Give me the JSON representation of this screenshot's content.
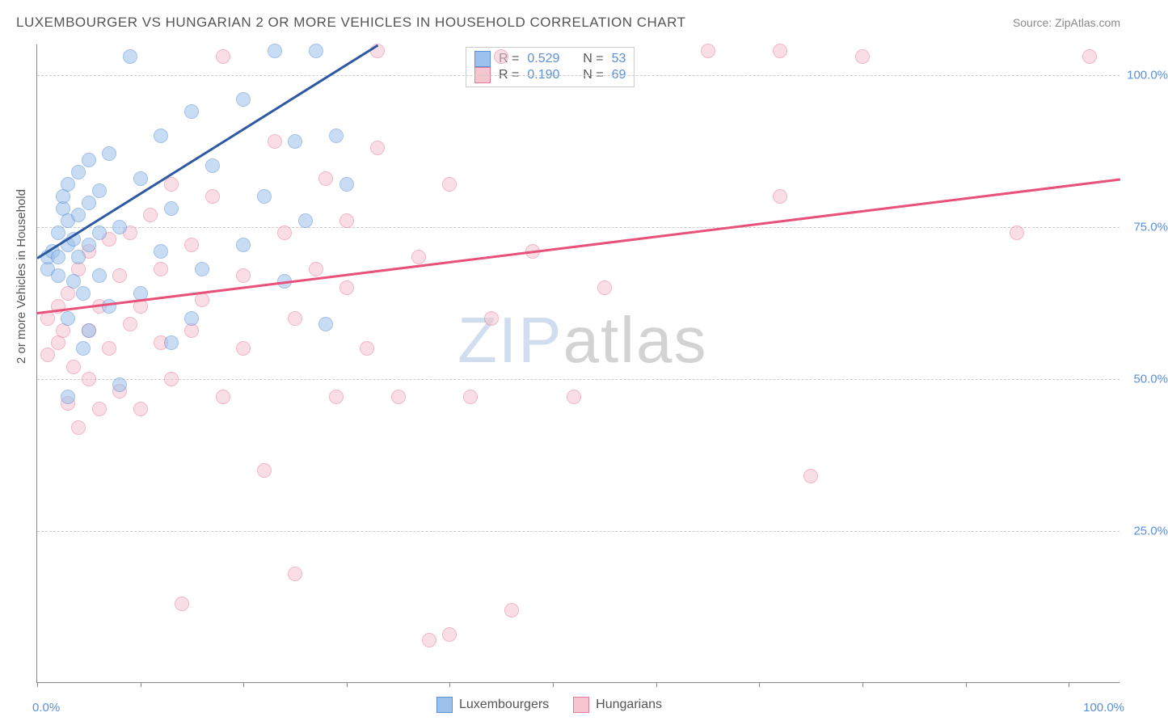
{
  "title": "LUXEMBOURGER VS HUNGARIAN 2 OR MORE VEHICLES IN HOUSEHOLD CORRELATION CHART",
  "source_label": "Source: ZipAtlas.com",
  "y_axis_label": "2 or more Vehicles in Household",
  "watermark": {
    "part1": "ZIP",
    "part2": "atlas"
  },
  "chart": {
    "type": "scatter",
    "xlim": [
      0,
      105
    ],
    "ylim": [
      0,
      105
    ],
    "x_ticks": [
      0,
      10,
      20,
      30,
      40,
      50,
      60,
      70,
      80,
      90,
      100
    ],
    "y_gridlines": [
      25,
      50,
      75,
      100
    ],
    "y_tick_labels": {
      "25": "25.0%",
      "50": "50.0%",
      "75": "75.0%",
      "100": "100.0%"
    },
    "x_left_label": "0.0%",
    "x_right_label": "100.0%",
    "background_color": "#ffffff",
    "grid_color": "#cccccc",
    "axis_color": "#888888",
    "tick_label_color": "#5b8fd6",
    "marker_radius": 9,
    "marker_opacity": 0.55,
    "series": [
      {
        "name": "Luxembourgers",
        "fill_color": "#9cc1ec",
        "stroke_color": "#5b8fd6",
        "trend_color": "#2c5aa0",
        "R": "0.529",
        "N": "53",
        "trend": {
          "x1": 0,
          "y1": 70,
          "x2": 33,
          "y2": 105
        },
        "points": [
          [
            1,
            68
          ],
          [
            1,
            70
          ],
          [
            1.5,
            71
          ],
          [
            2,
            70
          ],
          [
            2,
            74
          ],
          [
            2,
            67
          ],
          [
            2.5,
            78
          ],
          [
            2.5,
            80
          ],
          [
            3,
            72
          ],
          [
            3,
            76
          ],
          [
            3,
            82
          ],
          [
            3,
            60
          ],
          [
            3.5,
            66
          ],
          [
            3.5,
            73
          ],
          [
            4,
            84
          ],
          [
            4,
            77
          ],
          [
            4,
            70
          ],
          [
            4.5,
            55
          ],
          [
            4.5,
            64
          ],
          [
            5,
            86
          ],
          [
            5,
            79
          ],
          [
            5,
            72
          ],
          [
            5,
            58
          ],
          [
            6,
            81
          ],
          [
            6,
            74
          ],
          [
            6,
            67
          ],
          [
            7,
            87
          ],
          [
            7,
            62
          ],
          [
            8,
            75
          ],
          [
            8,
            49
          ],
          [
            9,
            103
          ],
          [
            10,
            83
          ],
          [
            10,
            64
          ],
          [
            12,
            71
          ],
          [
            12,
            90
          ],
          [
            13,
            78
          ],
          [
            13,
            56
          ],
          [
            15,
            60
          ],
          [
            15,
            94
          ],
          [
            16,
            68
          ],
          [
            17,
            85
          ],
          [
            20,
            96
          ],
          [
            20,
            72
          ],
          [
            22,
            80
          ],
          [
            23,
            104
          ],
          [
            24,
            66
          ],
          [
            25,
            89
          ],
          [
            26,
            76
          ],
          [
            27,
            104
          ],
          [
            28,
            59
          ],
          [
            29,
            90
          ],
          [
            30,
            82
          ],
          [
            3,
            47
          ]
        ]
      },
      {
        "name": "Hungarians",
        "fill_color": "#f5c5d0",
        "stroke_color": "#e87b9a",
        "trend_color": "#e8517a",
        "R": "0.190",
        "N": "69",
        "trend": {
          "x1": 0,
          "y1": 61,
          "x2": 105,
          "y2": 83
        },
        "points": [
          [
            1,
            54
          ],
          [
            1,
            60
          ],
          [
            2,
            56
          ],
          [
            2,
            62
          ],
          [
            2.5,
            58
          ],
          [
            3,
            46
          ],
          [
            3,
            64
          ],
          [
            3.5,
            52
          ],
          [
            4,
            68
          ],
          [
            4,
            42
          ],
          [
            5,
            58
          ],
          [
            5,
            71
          ],
          [
            5,
            50
          ],
          [
            6,
            62
          ],
          [
            6,
            45
          ],
          [
            7,
            73
          ],
          [
            7,
            55
          ],
          [
            8,
            67
          ],
          [
            8,
            48
          ],
          [
            9,
            59
          ],
          [
            9,
            74
          ],
          [
            10,
            45
          ],
          [
            10,
            62
          ],
          [
            11,
            77
          ],
          [
            12,
            56
          ],
          [
            12,
            68
          ],
          [
            13,
            82
          ],
          [
            13,
            50
          ],
          [
            14,
            13
          ],
          [
            15,
            72
          ],
          [
            15,
            58
          ],
          [
            16,
            63
          ],
          [
            17,
            80
          ],
          [
            18,
            47
          ],
          [
            18,
            103
          ],
          [
            20,
            67
          ],
          [
            20,
            55
          ],
          [
            22,
            35
          ],
          [
            23,
            89
          ],
          [
            24,
            74
          ],
          [
            25,
            60
          ],
          [
            25,
            18
          ],
          [
            27,
            68
          ],
          [
            28,
            83
          ],
          [
            29,
            47
          ],
          [
            30,
            65
          ],
          [
            30,
            76
          ],
          [
            32,
            55
          ],
          [
            33,
            88
          ],
          [
            33,
            104
          ],
          [
            35,
            47
          ],
          [
            37,
            70
          ],
          [
            38,
            7
          ],
          [
            40,
            8
          ],
          [
            40,
            82
          ],
          [
            42,
            47
          ],
          [
            44,
            60
          ],
          [
            45,
            103
          ],
          [
            46,
            12
          ],
          [
            48,
            71
          ],
          [
            52,
            47
          ],
          [
            55,
            65
          ],
          [
            65,
            104
          ],
          [
            72,
            104
          ],
          [
            72,
            80
          ],
          [
            75,
            34
          ],
          [
            80,
            103
          ],
          [
            95,
            74
          ],
          [
            102,
            103
          ]
        ]
      }
    ]
  },
  "stats_box": {
    "R_label": "R =",
    "N_label": "N ="
  },
  "legend": {
    "items": [
      "Luxembourgers",
      "Hungarians"
    ]
  }
}
